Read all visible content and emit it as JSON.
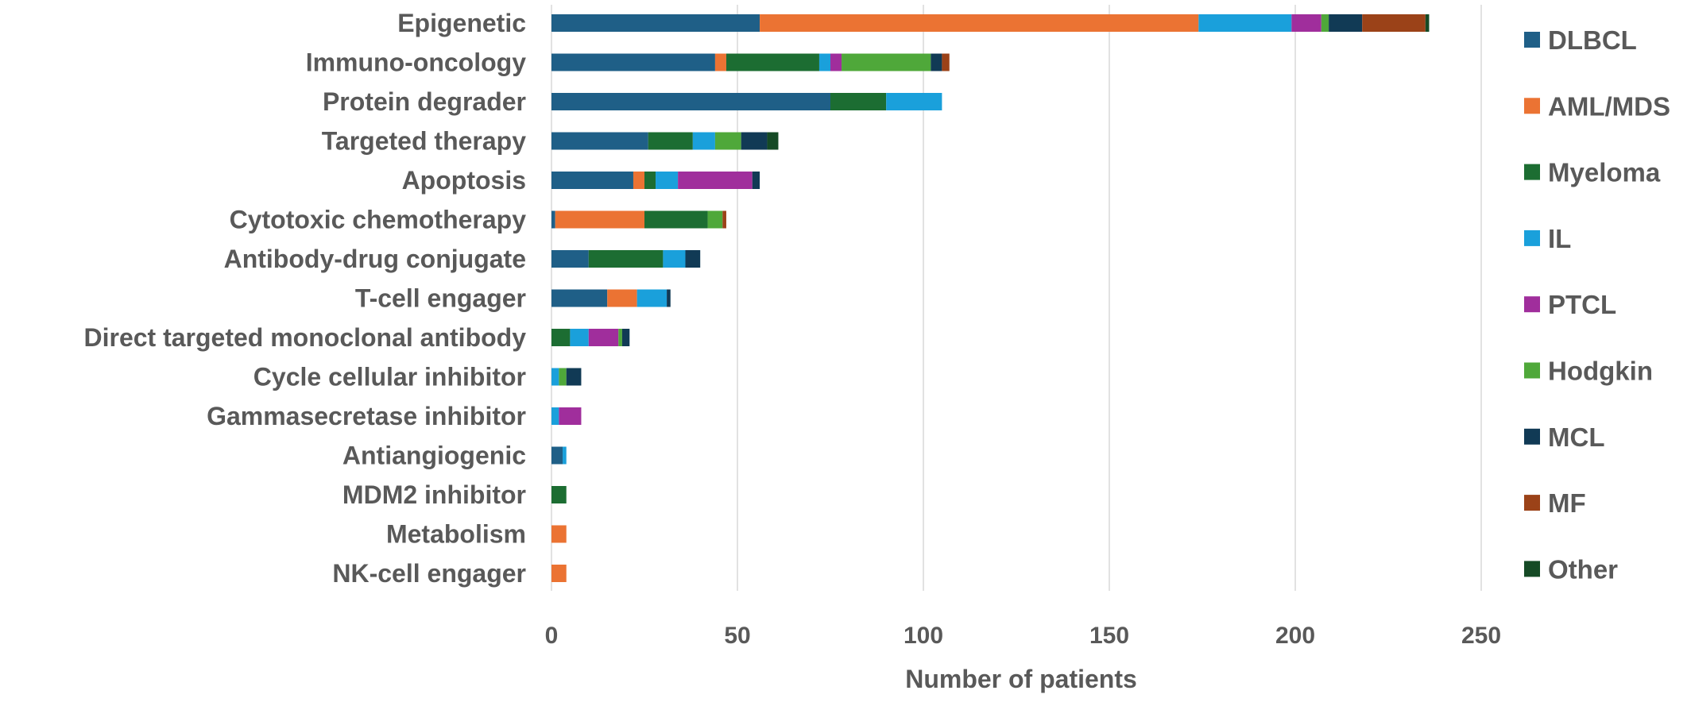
{
  "chart_data": {
    "type": "bar",
    "orientation": "horizontal",
    "stacked": true,
    "title": "",
    "xlabel": "Number of patients",
    "ylabel": "",
    "xlim": [
      0,
      250
    ],
    "x_ticks": [
      0,
      50,
      100,
      150,
      200,
      250
    ],
    "grid": "vertical",
    "legend_position": "right",
    "categories": [
      "Epigenetic",
      "Immuno-oncology",
      "Protein degrader",
      "Targeted therapy",
      "Apoptosis",
      "Cytotoxic chemotherapy",
      "Antibody-drug conjugate",
      "T-cell engager",
      "Direct targeted monoclonal antibody",
      "Cycle cellular inhibitor",
      "Gammasecretase inhibitor",
      "Antiangiogenic",
      "MDM2 inhibitor",
      "Metabolism",
      "NK-cell engager"
    ],
    "series": [
      {
        "name": "DLBCL",
        "color": "#1F5F87",
        "values": [
          56,
          44,
          75,
          26,
          22,
          1,
          10,
          15,
          0,
          0,
          0,
          3,
          0,
          0,
          0
        ]
      },
      {
        "name": "AML/MDS",
        "color": "#EB7333",
        "values": [
          118,
          3,
          0,
          0,
          3,
          24,
          0,
          8,
          0,
          0,
          0,
          0,
          0,
          4,
          4
        ]
      },
      {
        "name": "Myeloma",
        "color": "#1C6D32",
        "values": [
          0,
          25,
          15,
          12,
          3,
          17,
          20,
          0,
          5,
          0,
          0,
          0,
          4,
          0,
          0
        ]
      },
      {
        "name": "IL",
        "color": "#1AA0DB",
        "values": [
          25,
          3,
          15,
          6,
          6,
          0,
          6,
          8,
          5,
          2,
          2,
          1,
          0,
          0,
          0
        ]
      },
      {
        "name": "PTCL",
        "color": "#A02E9C",
        "values": [
          8,
          3,
          0,
          0,
          20,
          0,
          0,
          0,
          8,
          0,
          6,
          0,
          0,
          0,
          0
        ]
      },
      {
        "name": "Hodgkin",
        "color": "#4FA83A",
        "values": [
          2,
          24,
          0,
          7,
          0,
          4,
          0,
          0,
          1,
          2,
          0,
          0,
          0,
          0,
          0
        ]
      },
      {
        "name": "MCL",
        "color": "#113A55",
        "values": [
          9,
          3,
          0,
          7,
          2,
          0,
          4,
          1,
          2,
          4,
          0,
          0,
          0,
          0,
          0
        ]
      },
      {
        "name": "MF",
        "color": "#9B4218",
        "values": [
          17,
          2,
          0,
          0,
          0,
          1,
          0,
          0,
          0,
          0,
          0,
          0,
          0,
          0,
          0
        ]
      },
      {
        "name": "Other",
        "color": "#154A25",
        "values": [
          1,
          0,
          0,
          3,
          0,
          0,
          0,
          0,
          0,
          0,
          0,
          0,
          0,
          0,
          0
        ]
      }
    ]
  }
}
